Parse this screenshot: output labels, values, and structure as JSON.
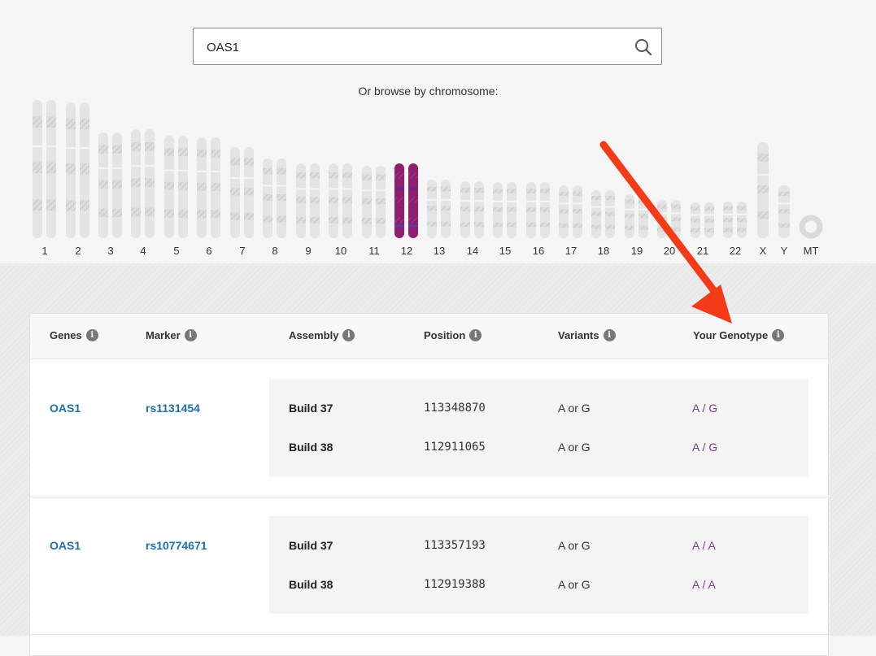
{
  "search": {
    "value": "OAS1"
  },
  "browse_label": "Or browse by chromosome:",
  "chromosomes": [
    {
      "label": "1",
      "h": 170,
      "highlight": false
    },
    {
      "label": "2",
      "h": 167,
      "highlight": false
    },
    {
      "label": "3",
      "h": 130,
      "highlight": false
    },
    {
      "label": "4",
      "h": 134,
      "highlight": false
    },
    {
      "label": "5",
      "h": 126,
      "highlight": false
    },
    {
      "label": "6",
      "h": 124,
      "highlight": false
    },
    {
      "label": "7",
      "h": 112,
      "highlight": false
    },
    {
      "label": "8",
      "h": 98,
      "highlight": false
    },
    {
      "label": "9",
      "h": 92,
      "highlight": false
    },
    {
      "label": "10",
      "h": 92,
      "highlight": false
    },
    {
      "label": "11",
      "h": 89,
      "highlight": false
    },
    {
      "label": "12",
      "h": 92,
      "highlight": true
    },
    {
      "label": "13",
      "h": 72,
      "highlight": false
    },
    {
      "label": "14",
      "h": 70,
      "highlight": false
    },
    {
      "label": "15",
      "h": 69,
      "highlight": false
    },
    {
      "label": "16",
      "h": 69,
      "highlight": false
    },
    {
      "label": "17",
      "h": 65,
      "highlight": false
    },
    {
      "label": "18",
      "h": 59,
      "highlight": false
    },
    {
      "label": "19",
      "h": 54,
      "highlight": false
    },
    {
      "label": "20",
      "h": 47,
      "highlight": false
    },
    {
      "label": "21",
      "h": 44,
      "highlight": false
    },
    {
      "label": "22",
      "h": 45,
      "highlight": false
    },
    {
      "label": "X",
      "h": 118,
      "highlight": false,
      "single": true
    },
    {
      "label": "Y",
      "h": 65,
      "highlight": false,
      "single": true
    },
    {
      "label": "MT",
      "h": 28,
      "highlight": false,
      "ring": true
    }
  ],
  "table": {
    "headers": [
      "Genes",
      "Marker",
      "Assembly",
      "Position",
      "Variants",
      "Your Genotype"
    ],
    "info_glyph": "i",
    "rows": [
      {
        "gene": "OAS1",
        "marker": "rs1131454",
        "builds": [
          {
            "label": "Build 37",
            "position": "113348870",
            "variants": "A or G",
            "genotype": "A / G"
          },
          {
            "label": "Build 38",
            "position": "112911065",
            "variants": "A or G",
            "genotype": "A / G"
          }
        ]
      },
      {
        "gene": "OAS1",
        "marker": "rs10774671",
        "builds": [
          {
            "label": "Build 37",
            "position": "113357193",
            "variants": "A or G",
            "genotype": "A / A"
          },
          {
            "label": "Build 38",
            "position": "112919388",
            "variants": "A or G",
            "genotype": "A / A"
          }
        ]
      }
    ]
  },
  "colors": {
    "link": "#1e6fb0",
    "genotype": "#7b3d8f",
    "highlight_chromosome": "#8e1f6e",
    "arrow": "#f43a17"
  }
}
